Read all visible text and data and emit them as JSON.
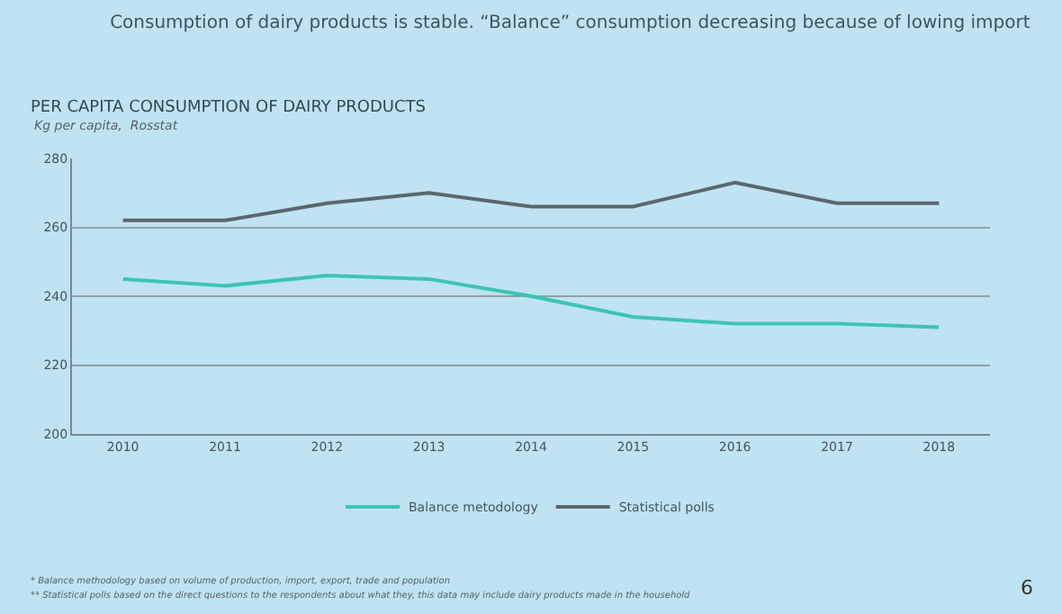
{
  "chart_data": {
    "type": "line",
    "title": "Consumption of dairy products is stable. “Balance” consumption decreasing because of lowing import",
    "subtitle": "PER CAPITA CONSUMPTION OF DAIRY PRODUCTS",
    "annotations": [
      "Kg per capita,  Rosstat",
      "* Balance methodology based on volume of production, import, export, trade and population",
      "** Statistical polls based on the direct questions to the respondents about what they, this data may include dairy products made in the household",
      "6"
    ],
    "categories": [
      "2010",
      "2011",
      "2012",
      "2013",
      "2014",
      "2015",
      "2016",
      "2017",
      "2018"
    ],
    "series": [
      {
        "name": "Balance metodology",
        "color": "#3cc4b4",
        "values": [
          245,
          243,
          246,
          245,
          240,
          234,
          232,
          232,
          231
        ]
      },
      {
        "name": "Statistical polls",
        "color": "#5b6670",
        "values": [
          262,
          262,
          267,
          270,
          266,
          266,
          273,
          267,
          267
        ]
      }
    ],
    "ylim": [
      200,
      280
    ],
    "yticks": [
      200,
      220,
      240,
      260,
      280
    ],
    "grid": "y",
    "legend": "bottom",
    "marker": "none",
    "line_style": "solid"
  }
}
